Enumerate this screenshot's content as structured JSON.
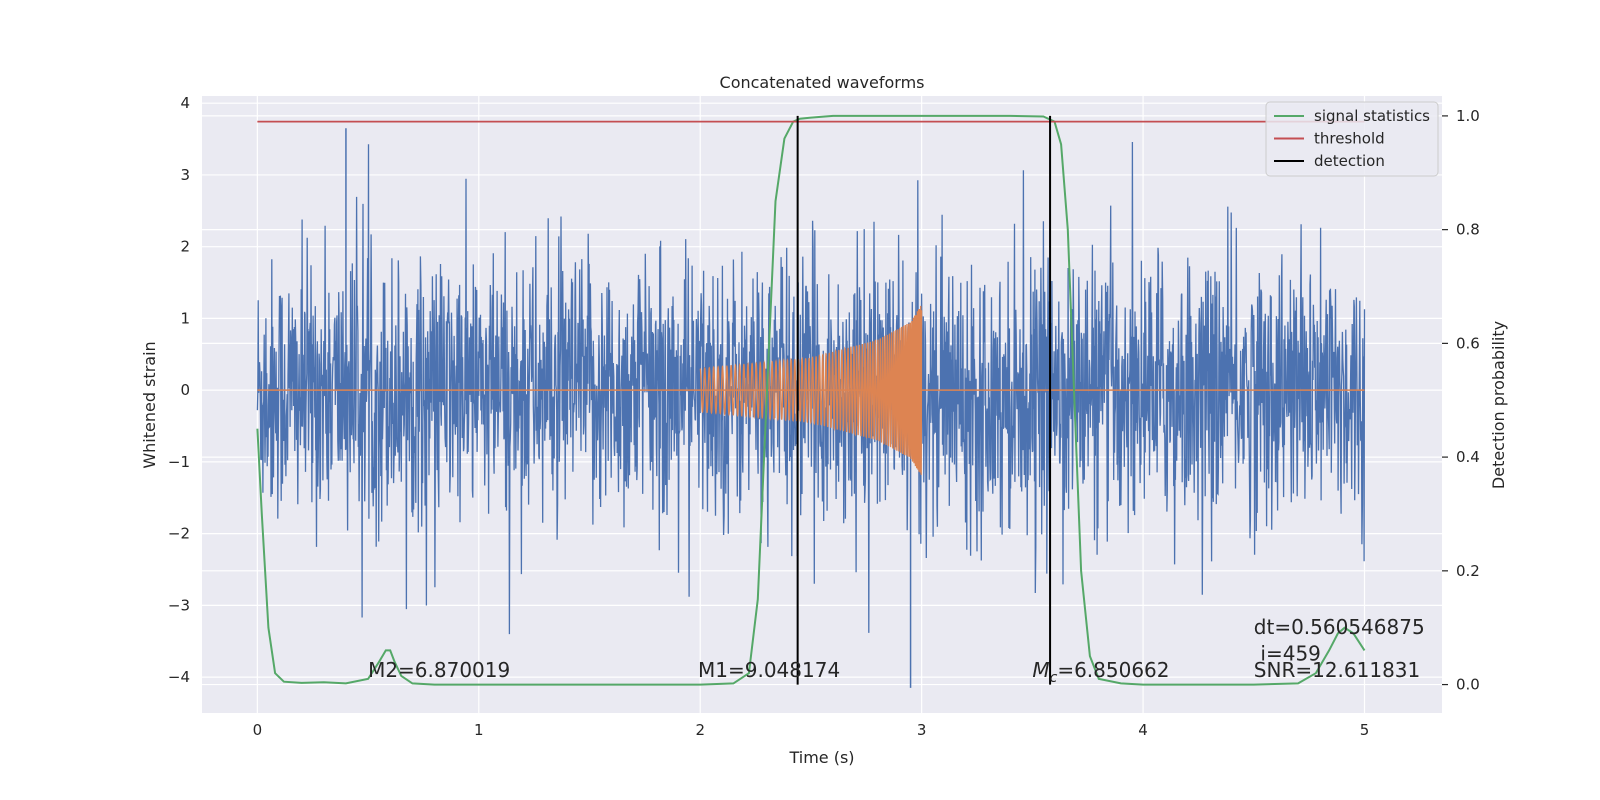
{
  "chart_data": {
    "type": "line",
    "title": "Concatenated waveforms",
    "xlabel": "Time (s)",
    "ylabel": "Whitened strain",
    "ylabel_right": "Detection probability",
    "xlim": [
      -0.25,
      5.35
    ],
    "ylim": [
      -4.5,
      4.1
    ],
    "ylim_right": [
      -0.05,
      1.035
    ],
    "x_ticks": [
      0,
      1,
      2,
      3,
      4,
      5
    ],
    "y_ticks": [
      -4,
      -3,
      -2,
      -1,
      0,
      1,
      2,
      3,
      4
    ],
    "y_ticks_right": [
      0.0,
      0.2,
      0.4,
      0.6,
      0.8,
      1.0
    ],
    "x_tick_labels": [
      "0",
      "1",
      "2",
      "3",
      "4",
      "5"
    ],
    "y_tick_labels": [
      "−4",
      "−3",
      "−2",
      "−1",
      "0",
      "1",
      "2",
      "3",
      "4"
    ],
    "y_tick_labels_right": [
      "0.0",
      "0.2",
      "0.4",
      "0.6",
      "0.8",
      "1.0"
    ],
    "grid": true,
    "legend_position": "top-right",
    "legend": [
      {
        "label": "signal statistics",
        "color": "#55a868"
      },
      {
        "label": "threshold",
        "color": "#c44e52"
      },
      {
        "label": "detection",
        "color": "#000000"
      }
    ],
    "colors": {
      "noise": "#4c72b0",
      "waveform": "#dd8452",
      "statistics": "#55a868",
      "threshold": "#c44e52",
      "detection": "#000000",
      "plot_bg": "#eaeaf2",
      "grid": "#ffffff"
    },
    "series": [
      {
        "axis": "left",
        "color": "#4c72b0",
        "style": "noise",
        "x_range": [
          0,
          5
        ],
        "typical_range": [
          -1.0,
          1.0
        ],
        "peaks_max": 3.65,
        "peaks_min": -4.15
      },
      {
        "axis": "left",
        "color": "#dd8452",
        "style": "chirp",
        "x": [
          2.0,
          2.5,
          2.8,
          2.95,
          3.0
        ],
        "amplitude": [
          0.3,
          0.45,
          0.7,
          0.95,
          1.2
        ],
        "baseline_x_range": [
          0,
          5
        ]
      },
      {
        "name": "signal statistics",
        "axis": "right",
        "color": "#55a868",
        "x": [
          0.0,
          0.02,
          0.05,
          0.08,
          0.12,
          0.2,
          0.3,
          0.4,
          0.5,
          0.55,
          0.58,
          0.6,
          0.62,
          0.65,
          0.7,
          0.8,
          1.0,
          1.5,
          2.0,
          2.15,
          2.22,
          2.26,
          2.3,
          2.34,
          2.38,
          2.42,
          2.45,
          2.5,
          2.6,
          2.8,
          3.0,
          3.2,
          3.4,
          3.55,
          3.6,
          3.63,
          3.66,
          3.69,
          3.72,
          3.76,
          3.8,
          3.9,
          4.0,
          4.2,
          4.5,
          4.7,
          4.78,
          4.84,
          4.88,
          4.91,
          4.95,
          5.0
        ],
        "y": [
          0.45,
          0.3,
          0.1,
          0.02,
          0.005,
          0.003,
          0.004,
          0.002,
          0.01,
          0.04,
          0.06,
          0.06,
          0.04,
          0.015,
          0.002,
          0.0,
          0.0,
          0.0,
          0.0,
          0.002,
          0.02,
          0.15,
          0.5,
          0.85,
          0.96,
          0.99,
          0.995,
          0.997,
          1.0,
          1.0,
          1.0,
          1.0,
          1.0,
          0.999,
          0.99,
          0.95,
          0.8,
          0.5,
          0.2,
          0.05,
          0.01,
          0.002,
          0.0,
          0.0,
          0.0,
          0.002,
          0.02,
          0.06,
          0.09,
          0.1,
          0.09,
          0.06
        ]
      },
      {
        "name": "threshold",
        "axis": "right",
        "color": "#c44e52",
        "x": [
          0,
          5
        ],
        "y": [
          0.99,
          0.99
        ]
      }
    ],
    "detections": [
      2.44,
      3.58
    ],
    "detection_y_range": [
      0.0,
      1.0
    ],
    "annotations": [
      {
        "text": "M2=6.870019",
        "x": 0.5,
        "y": -4.0
      },
      {
        "text": "M1=9.048174",
        "x": 1.99,
        "y": -4.0
      },
      {
        "text": "Mc_label",
        "x": 3.5,
        "y": -4.0
      },
      {
        "text": "SNR=12.611831",
        "x": 4.5,
        "y": -4.0
      },
      {
        "text": "i=459",
        "x": 4.53,
        "y": -3.77
      },
      {
        "text": "dt=0.560546875",
        "x": 4.5,
        "y": -3.4
      }
    ],
    "mc_label": {
      "symbol": "M",
      "subscript": "c",
      "value": "=6.850662"
    }
  }
}
